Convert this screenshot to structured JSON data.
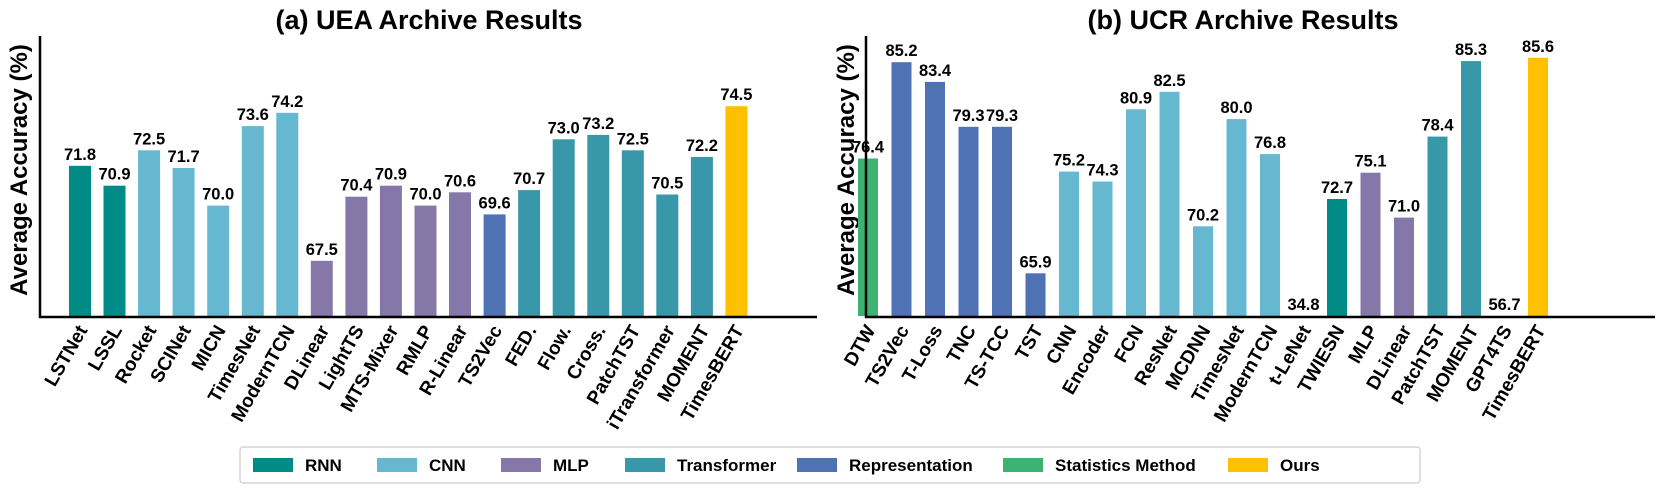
{
  "colors": {
    "RNN": "#008B87",
    "CNN": "#66B8D0",
    "MLP": "#8677A9",
    "Transformer": "#3897A8",
    "Representation": "#4F72B5",
    "Statistics Method": "#3CB273",
    "Ours": "#FFC000",
    "highlight_label": "#FF0000"
  },
  "legend": [
    {
      "label": "RNN",
      "color": "#008B87"
    },
    {
      "label": "CNN",
      "color": "#66B8D0"
    },
    {
      "label": "MLP",
      "color": "#8677A9"
    },
    {
      "label": "Transformer",
      "color": "#3897A8"
    },
    {
      "label": "Representation",
      "color": "#4F72B5"
    },
    {
      "label": "Statistics Method",
      "color": "#3CB273"
    },
    {
      "label": "Ours",
      "color": "#FFC000"
    }
  ],
  "chart_data": [
    {
      "type": "bar",
      "title": "(a) UEA Archive Results",
      "xlabel": "",
      "ylabel": "Average Accuracy (%)",
      "ylim": [
        65,
        76.5
      ],
      "categories": [
        "LSTNet",
        "LSSL",
        "Rocket",
        "SCINet",
        "MICN",
        "TimesNet",
        "ModernTCN",
        "DLinear",
        "LightTS",
        "MTS-Mixer",
        "RMLP",
        "R-Linear",
        "TS2Vec",
        "FED.",
        "Flow.",
        "Cross.",
        "PatchTST",
        "iTransformer",
        "MOMENT",
        "TimesBERT"
      ],
      "values": [
        71.8,
        70.9,
        72.5,
        71.7,
        70.0,
        73.6,
        74.2,
        67.5,
        70.4,
        70.9,
        70.0,
        70.6,
        69.6,
        70.7,
        73.0,
        73.2,
        72.5,
        70.5,
        72.2,
        74.5
      ],
      "value_labels": [
        "71.8",
        "70.9",
        "72.5",
        "71.7",
        "70.0",
        "73.6",
        "74.2",
        "67.5",
        "70.4",
        "70.9",
        "70.0",
        "70.6",
        "69.6",
        "70.7",
        "73.0",
        "73.2",
        "72.5",
        "70.5",
        "72.2",
        "74.5"
      ],
      "groups": [
        "RNN",
        "RNN",
        "CNN",
        "CNN",
        "CNN",
        "CNN",
        "CNN",
        "MLP",
        "MLP",
        "MLP",
        "MLP",
        "MLP",
        "Representation",
        "Transformer",
        "Transformer",
        "Transformer",
        "Transformer",
        "Transformer",
        "Transformer",
        "Ours"
      ],
      "highlight": "TimesBERT"
    },
    {
      "type": "bar",
      "title": "(b) UCR Archive Results",
      "xlabel": "",
      "ylabel": "Average Accuracy (%)",
      "ylim": [
        62,
        86.5
      ],
      "categories": [
        "DTW",
        "TS2Vec",
        "T-Loss",
        "TNC",
        "TS-TCC",
        "TST",
        "CNN",
        "Encoder",
        "FCN",
        "ResNet",
        "MCDNN",
        "TimesNet",
        "ModernTCN",
        "t-LeNet",
        "TWIESN",
        "MLP",
        "DLinear",
        "PatchTST",
        "MOMENT",
        "GPT4TS",
        "TimesBERT"
      ],
      "values": [
        76.4,
        85.2,
        83.4,
        79.3,
        79.3,
        65.9,
        75.2,
        74.3,
        80.9,
        82.5,
        70.2,
        80.0,
        76.8,
        34.8,
        72.7,
        75.1,
        71.0,
        78.4,
        85.3,
        56.7,
        85.6
      ],
      "value_labels": [
        "76.4",
        "85.2",
        "83.4",
        "79.3",
        "79.3",
        "65.9",
        "75.2",
        "74.3",
        "80.9",
        "82.5",
        "70.2",
        "80.0",
        "76.8",
        "34.8",
        "72.7",
        "75.1",
        "71.0",
        "78.4",
        "85.3",
        "56.7",
        "85.6"
      ],
      "groups": [
        "Statistics Method",
        "Representation",
        "Representation",
        "Representation",
        "Representation",
        "Representation",
        "CNN",
        "CNN",
        "CNN",
        "CNN",
        "CNN",
        "CNN",
        "CNN",
        "CNN",
        "RNN",
        "MLP",
        "MLP",
        "Transformer",
        "Transformer",
        "Transformer",
        "Ours"
      ],
      "highlight": "TimesBERT"
    }
  ]
}
